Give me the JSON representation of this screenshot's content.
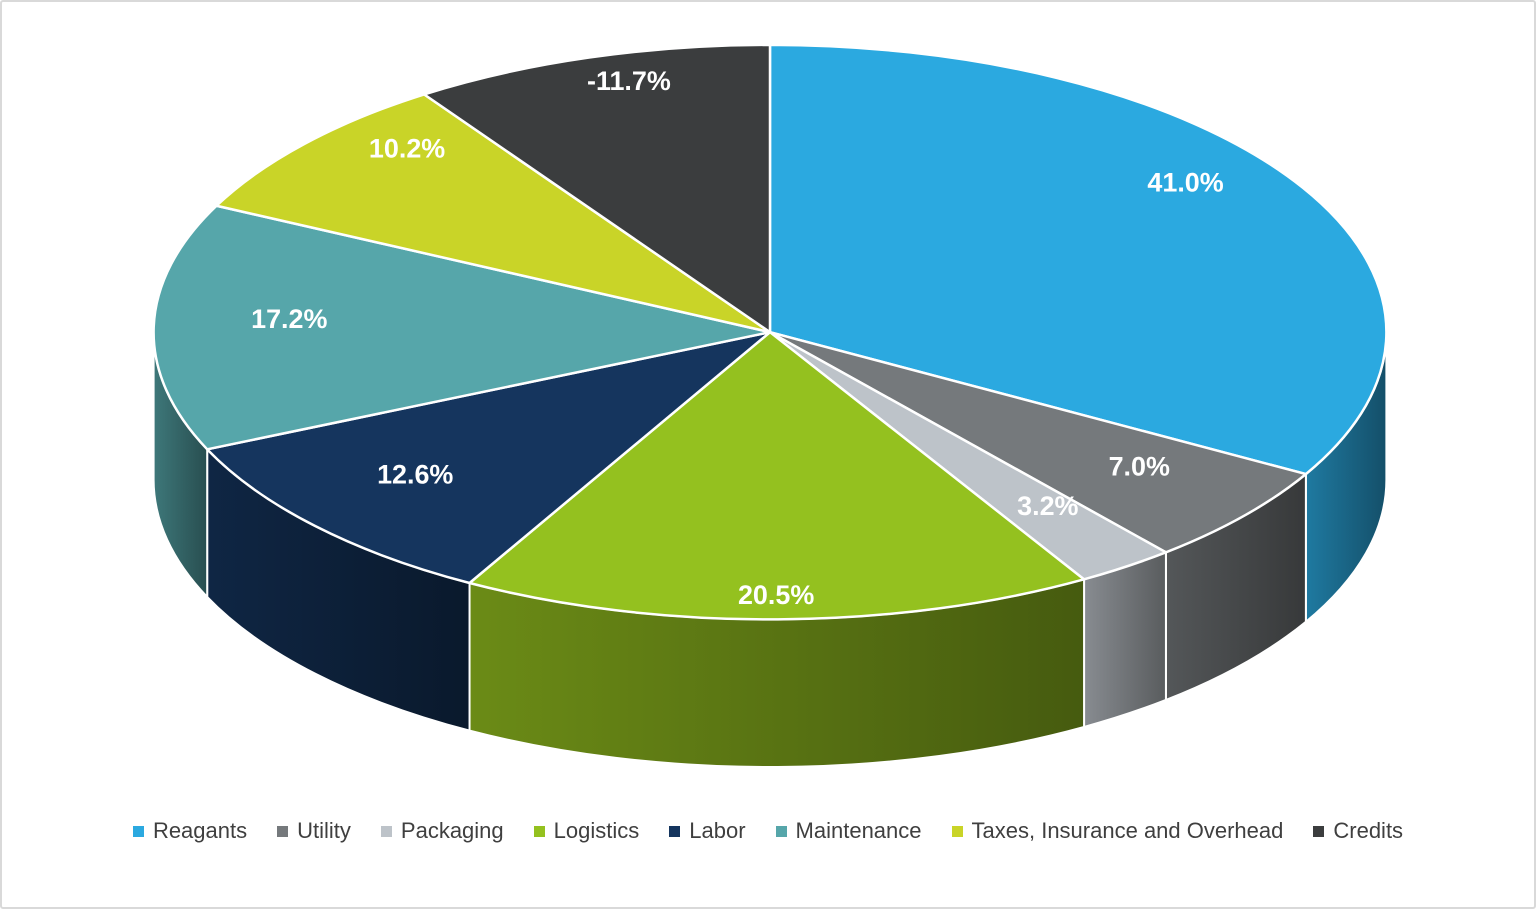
{
  "chart_data": {
    "type": "pie",
    "style": "3d-pie",
    "title": "",
    "legend_position": "bottom",
    "start_angle_deg": 0,
    "direction": "clockwise",
    "slices": [
      {
        "label": "Reagants",
        "value": 41.0,
        "display": "41.0%",
        "color": "#2BA9E0"
      },
      {
        "label": "Utility",
        "value": 7.0,
        "display": "7.0%",
        "color": "#75797C"
      },
      {
        "label": "Packaging",
        "value": 3.2,
        "display": "3.2%",
        "color": "#BDC3C9"
      },
      {
        "label": "Logistics",
        "value": 20.5,
        "display": "20.5%",
        "color": "#94C11F"
      },
      {
        "label": "Labor",
        "value": 12.6,
        "display": "12.6%",
        "color": "#15355E"
      },
      {
        "label": "Maintenance",
        "value": 17.2,
        "display": "17.2%",
        "color": "#56A6AA"
      },
      {
        "label": "Taxes, Insurance and Overhead",
        "value": 10.2,
        "display": "10.2%",
        "color": "#C9D428"
      },
      {
        "label": "Credits",
        "value": -11.7,
        "display": "-11.7%",
        "color": "#3B3D3E"
      }
    ],
    "label_color": "#FFFFFF",
    "legend_text_color": "#3F3F3F"
  }
}
